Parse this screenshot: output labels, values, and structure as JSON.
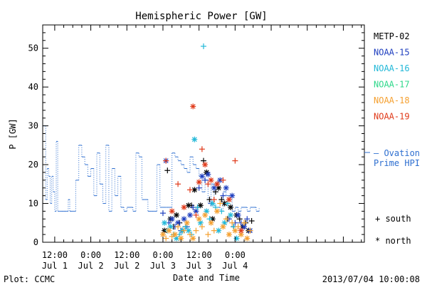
{
  "chart_data": {
    "type": "scatter",
    "title": "Hemispheric Power [GW]",
    "xlabel": "Date and Time",
    "ylabel": "P [GW]",
    "x_unit": "hours after 2013-07-01 00:00 UTC",
    "xlim": [
      8,
      115
    ],
    "ylim": [
      0,
      56
    ],
    "yticks": [
      0,
      10,
      20,
      30,
      40,
      50
    ],
    "xticks": [
      {
        "x": 12,
        "line1": "12:00",
        "line2": "Jul 1"
      },
      {
        "x": 24,
        "line1": "0:00",
        "line2": "Jul 2"
      },
      {
        "x": 36,
        "line1": "12:00",
        "line2": "Jul 2"
      },
      {
        "x": 48,
        "line1": "0:00",
        "line2": "Jul 3"
      },
      {
        "x": 60,
        "line1": "12:00",
        "line2": "Jul 3"
      },
      {
        "x": 72,
        "line1": "0:00",
        "line2": "Jul 4"
      }
    ],
    "ovation": {
      "name": "Ovation Prime HPI",
      "legend_line1": "– Ovation",
      "legend_line2": "Prime HPI",
      "color": "#2e6fd0",
      "x": [
        8,
        9,
        9.5,
        10,
        10.5,
        11,
        11.5,
        12,
        12.5,
        13,
        13.5,
        14,
        15,
        16,
        16.5,
        17,
        18,
        18.5,
        19,
        20,
        21,
        22,
        23,
        24,
        25,
        26,
        27,
        28,
        29,
        30,
        30.5,
        31,
        32,
        33,
        34,
        35,
        36,
        37,
        38,
        39,
        40,
        41,
        42,
        43,
        44,
        45,
        46,
        47,
        48,
        49,
        50,
        51,
        52,
        53,
        54,
        55,
        56,
        57,
        58,
        59,
        60,
        61,
        62,
        63,
        64,
        65,
        66,
        67,
        68,
        69,
        70,
        71,
        72,
        73,
        74,
        75,
        76,
        77,
        78,
        79,
        80
      ],
      "y": [
        30,
        11,
        19,
        17,
        10,
        17,
        13,
        8,
        26,
        8,
        8,
        8,
        8,
        8,
        11,
        8,
        8,
        8,
        16,
        25,
        22,
        20,
        17,
        19,
        12,
        23,
        15,
        10,
        25,
        8,
        8,
        19,
        12,
        17,
        9,
        8,
        9,
        9,
        8,
        23,
        22,
        11,
        11,
        8,
        8,
        8,
        20,
        9,
        9,
        9,
        9,
        23,
        22,
        21,
        20,
        19,
        18,
        22,
        20,
        19,
        17,
        13,
        16,
        10,
        15,
        9,
        9,
        8,
        13,
        12,
        11,
        8,
        9,
        8,
        9,
        9,
        8,
        9,
        9,
        8,
        9
      ]
    },
    "series": [
      {
        "name": "METP-02",
        "color": "#000000",
        "x": [
          48.5,
          49.5,
          50.5,
          51.5,
          52.5,
          53.5,
          54.5,
          55.5,
          56.5,
          57.5,
          58.5,
          59.5,
          60.5,
          61.5,
          62.5,
          63.5,
          64.5,
          65.5,
          66.5,
          67.5,
          68.5,
          69.5,
          70.5,
          71.5,
          72.5,
          73.5,
          74.5,
          75.5,
          76.5,
          77.5
        ],
        "y": [
          3,
          18.5,
          6,
          4,
          7,
          5,
          3,
          4,
          9.5,
          9.5,
          13.5,
          9,
          9.5,
          21,
          18,
          11,
          6,
          13,
          14,
          11,
          10,
          6,
          9,
          4,
          7,
          6,
          4,
          5,
          3,
          5.5
        ]
      },
      {
        "name": "NOAA-15",
        "color": "#1f3fbf",
        "x": [
          48,
          49,
          50,
          51,
          52,
          53,
          54,
          55,
          56,
          57,
          58,
          59,
          60,
          61,
          62,
          63,
          64,
          65,
          66,
          67,
          68,
          69,
          70,
          71,
          72,
          73,
          74,
          75,
          76,
          77
        ],
        "y": [
          7.5,
          21,
          5,
          6,
          4,
          5,
          3,
          6,
          4,
          7,
          9,
          8,
          14,
          17,
          16,
          17.5,
          10,
          14,
          15,
          16,
          12,
          14,
          6,
          12,
          5,
          7,
          5,
          4,
          6,
          3
        ]
      },
      {
        "name": "NOAA-16",
        "color": "#22b8d8",
        "x": [
          48.5,
          49.5,
          50.5,
          51.5,
          52.5,
          53.5,
          54.5,
          55.5,
          56.5,
          57.5,
          58.5,
          59.5,
          60.5,
          61.5,
          62.5,
          63.5,
          64.5,
          65.5,
          66.5,
          67.5,
          68.5,
          69.5,
          70.5,
          71.5,
          72.5
        ],
        "y": [
          5,
          3,
          4,
          2,
          1,
          2,
          3,
          4,
          3,
          2,
          26.5,
          9,
          5,
          50.5,
          8,
          6,
          10,
          9,
          3,
          8,
          5,
          10,
          7,
          4,
          1
        ]
      },
      {
        "name": "NOAA-17",
        "color": "#2ed88a",
        "x": [],
        "y": []
      },
      {
        "name": "NOAA-18",
        "color": "#f5a030",
        "x": [
          48,
          49,
          50,
          51,
          52,
          53,
          54,
          55,
          56,
          57,
          58,
          59,
          60,
          61,
          62,
          63,
          64,
          65,
          66,
          67,
          68,
          69,
          70,
          71,
          72,
          73,
          74,
          75,
          76,
          77
        ],
        "y": [
          2,
          1,
          3,
          1.5,
          2,
          4,
          1,
          3,
          5,
          2,
          1,
          3,
          6,
          4,
          7,
          2,
          5,
          3,
          8,
          10,
          4,
          6,
          2,
          5,
          3,
          4,
          2,
          5,
          1,
          3
        ]
      },
      {
        "name": "NOAA-19",
        "color": "#e03a1a",
        "x": [
          49,
          51,
          53,
          55,
          57,
          58,
          59,
          60,
          61,
          62,
          63,
          64,
          65,
          66,
          68,
          70,
          72,
          74
        ],
        "y": [
          21,
          8,
          15,
          9,
          13.5,
          35,
          7,
          15.5,
          24,
          20,
          15,
          16,
          11,
          15,
          16,
          11,
          21,
          3
        ]
      }
    ],
    "symbol_key": [
      {
        "symbol": "+",
        "label": "south"
      },
      {
        "symbol": "*",
        "label": "north"
      }
    ]
  },
  "footer": {
    "credit": "Plot: CCMC",
    "timestamp": "2013/07/04 10:00:08"
  }
}
